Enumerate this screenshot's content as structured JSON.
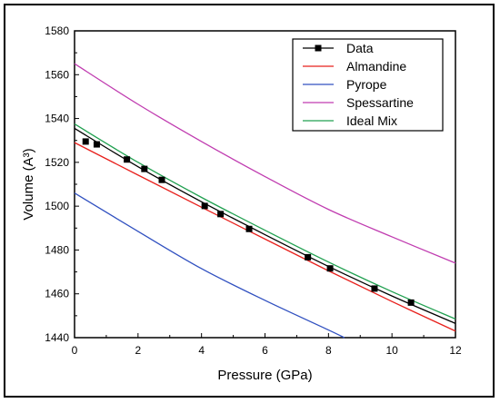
{
  "chart_data": {
    "type": "line",
    "xlabel": "Pressure (GPa)",
    "ylabel": "Volume (A³)",
    "xlim": [
      0,
      12
    ],
    "ylim": [
      1440,
      1580
    ],
    "xticks": [
      0,
      2,
      4,
      6,
      8,
      10,
      12
    ],
    "yticks": [
      1440,
      1460,
      1480,
      1500,
      1520,
      1540,
      1560,
      1580
    ],
    "grid": false,
    "legend_position": "top-right",
    "series": [
      {
        "name": "Data",
        "kind": "line+markers",
        "color": "#000000",
        "x": [
          0,
          2,
          4,
          6,
          8,
          10,
          12
        ],
        "y": [
          1535.5,
          1518.0,
          1502.0,
          1487.0,
          1472.5,
          1459.0,
          1446.5
        ],
        "points": [
          {
            "x": 0.35,
            "y": 1529.5
          },
          {
            "x": 0.7,
            "y": 1528.2
          },
          {
            "x": 1.65,
            "y": 1521.3
          },
          {
            "x": 2.2,
            "y": 1517.0
          },
          {
            "x": 2.75,
            "y": 1512.0
          },
          {
            "x": 4.1,
            "y": 1500.1
          },
          {
            "x": 4.6,
            "y": 1496.4
          },
          {
            "x": 5.5,
            "y": 1489.6
          },
          {
            "x": 7.35,
            "y": 1476.7
          },
          {
            "x": 8.05,
            "y": 1471.6
          },
          {
            "x": 9.45,
            "y": 1462.4
          },
          {
            "x": 10.6,
            "y": 1456.0
          }
        ]
      },
      {
        "name": "Almandine",
        "kind": "line",
        "color": "#e8201c",
        "x": [
          0,
          2,
          4,
          6,
          8,
          10,
          12
        ],
        "y": [
          1529.0,
          1514.2,
          1499.5,
          1485.0,
          1470.5,
          1456.5,
          1443.0
        ]
      },
      {
        "name": "Pyrope",
        "kind": "line",
        "color": "#3050c0",
        "x": [
          0,
          2,
          4,
          6,
          8,
          8.5
        ],
        "y": [
          1506.0,
          1488.5,
          1471.5,
          1457.0,
          1443.5,
          1440.0
        ]
      },
      {
        "name": "Spessartine",
        "kind": "line",
        "color": "#c03cb0",
        "x": [
          0,
          2,
          4,
          6,
          8,
          10,
          12
        ],
        "y": [
          1565.0,
          1546.5,
          1529.5,
          1513.5,
          1498.5,
          1486.0,
          1474.0
        ]
      },
      {
        "name": "Ideal Mix",
        "kind": "line",
        "color": "#20a050",
        "x": [
          0,
          2,
          4,
          6,
          8,
          10,
          12
        ],
        "y": [
          1537.5,
          1520.0,
          1504.0,
          1489.0,
          1474.5,
          1461.0,
          1448.5
        ]
      }
    ]
  }
}
